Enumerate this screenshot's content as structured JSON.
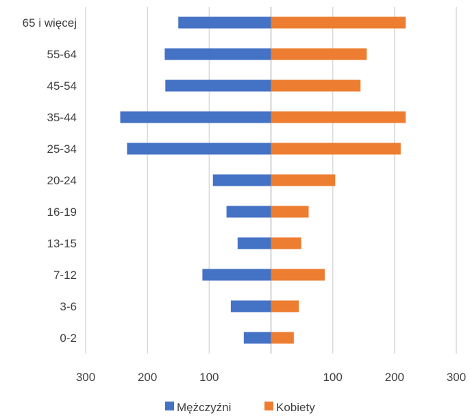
{
  "chart_data": {
    "type": "bar",
    "orientation": "horizontal",
    "layout": "population-pyramid",
    "title": "",
    "xlabel": "",
    "ylabel": "",
    "categories": [
      "0-2",
      "3-6",
      "7-12",
      "13-15",
      "16-19",
      "20-24",
      "25-34",
      "35-44",
      "45-54",
      "55-64",
      "65 i więcej"
    ],
    "series": [
      {
        "name": "Mężczyźni",
        "side": "left",
        "color": "#4472C4",
        "values": [
          44,
          65,
          111,
          54,
          72,
          94,
          233,
          244,
          171,
          172,
          150
        ]
      },
      {
        "name": "Kobiety",
        "side": "right",
        "color": "#ED7D31",
        "values": [
          37,
          45,
          87,
          49,
          61,
          104,
          210,
          218,
          145,
          155,
          218
        ]
      }
    ],
    "xlim": [
      -300,
      300
    ],
    "x_ticks": [
      -300,
      -200,
      -100,
      0,
      100,
      200,
      300
    ],
    "x_tick_labels": [
      "300",
      "200",
      "100",
      "",
      "100",
      "200",
      "300"
    ],
    "grid": "vertical",
    "legend_position": "bottom"
  }
}
